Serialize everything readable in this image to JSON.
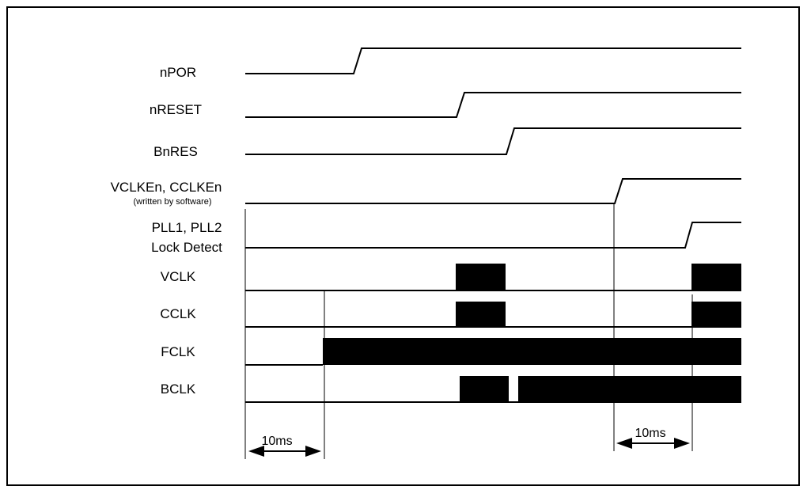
{
  "signals": [
    {
      "id": "npor",
      "label": "nPOR"
    },
    {
      "id": "nreset",
      "label": "nRESET"
    },
    {
      "id": "bnres",
      "label": "BnRES"
    },
    {
      "id": "vclken",
      "label": "VCLKEn, CCLKEn",
      "note": "(written by software)"
    },
    {
      "id": "pll",
      "label": "PLL1, PLL2",
      "label2": "Lock Detect"
    },
    {
      "id": "vclk",
      "label": "VCLK"
    },
    {
      "id": "cclk",
      "label": "CCLK"
    },
    {
      "id": "fclk",
      "label": "FCLK"
    },
    {
      "id": "bclk",
      "label": "BCLK"
    }
  ],
  "dimensions": [
    {
      "id": "dim-left",
      "label": "10ms"
    },
    {
      "id": "dim-right",
      "label": "10ms"
    }
  ]
}
